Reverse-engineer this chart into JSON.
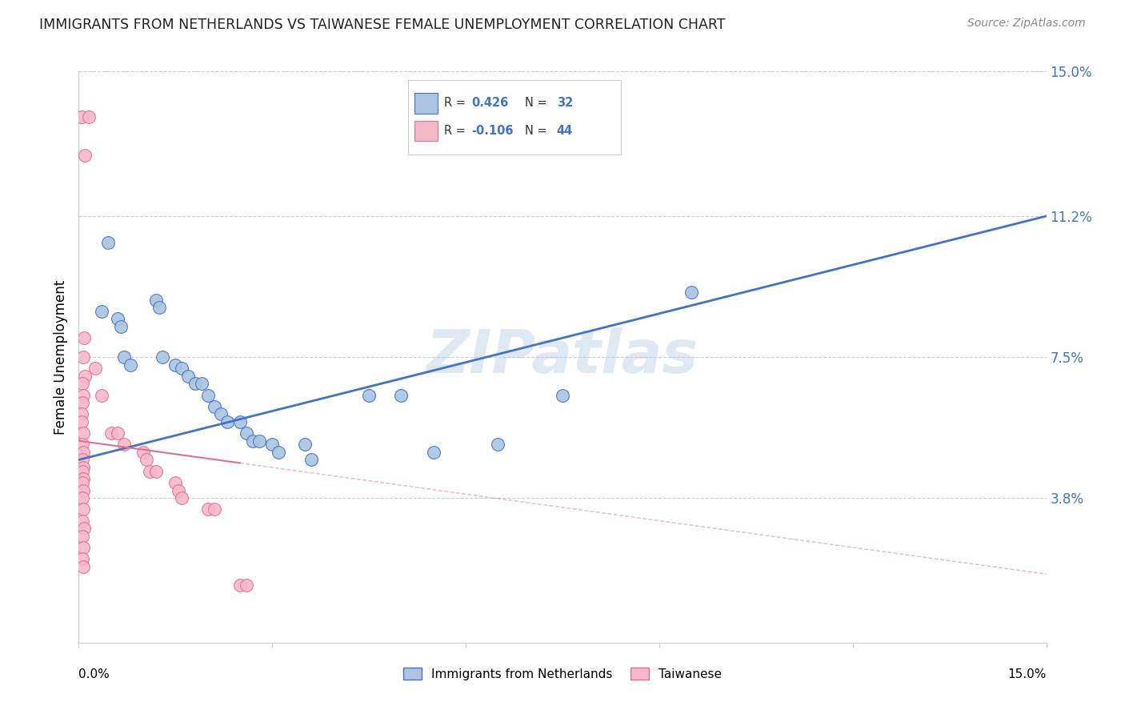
{
  "title": "IMMIGRANTS FROM NETHERLANDS VS TAIWANESE FEMALE UNEMPLOYMENT CORRELATION CHART",
  "source": "Source: ZipAtlas.com",
  "ylabel": "Female Unemployment",
  "xmin": 0.0,
  "xmax": 15.0,
  "ymin": 0.0,
  "ymax": 15.0,
  "yticks": [
    3.8,
    7.5,
    11.2,
    15.0
  ],
  "ytick_labels": [
    "3.8%",
    "7.5%",
    "11.2%",
    "15.0%"
  ],
  "legend1_label": "Immigrants from Netherlands",
  "legend2_label": "Taiwanese",
  "r1": "0.426",
  "n1": "32",
  "r2": "-0.106",
  "n2": "44",
  "color_blue": "#aac4e2",
  "color_pink": "#f5b8c8",
  "line_blue": "#4472c4",
  "line_pink": "#e07090",
  "watermark": "ZIPatlas",
  "blue_line_x": [
    0.0,
    15.0
  ],
  "blue_line_y": [
    4.8,
    11.2
  ],
  "pink_line_x": [
    0.0,
    15.0
  ],
  "pink_line_y": [
    5.3,
    1.8
  ],
  "blue_points": [
    [
      0.35,
      8.7
    ],
    [
      0.45,
      10.5
    ],
    [
      0.6,
      8.5
    ],
    [
      0.65,
      8.3
    ],
    [
      0.7,
      7.5
    ],
    [
      0.8,
      7.3
    ],
    [
      1.2,
      9.0
    ],
    [
      1.25,
      8.8
    ],
    [
      1.3,
      7.5
    ],
    [
      1.5,
      7.3
    ],
    [
      1.6,
      7.2
    ],
    [
      1.7,
      7.0
    ],
    [
      1.8,
      6.8
    ],
    [
      1.9,
      6.8
    ],
    [
      2.0,
      6.5
    ],
    [
      2.1,
      6.2
    ],
    [
      2.2,
      6.0
    ],
    [
      2.3,
      5.8
    ],
    [
      2.5,
      5.8
    ],
    [
      2.6,
      5.5
    ],
    [
      2.7,
      5.3
    ],
    [
      2.8,
      5.3
    ],
    [
      3.0,
      5.2
    ],
    [
      3.1,
      5.0
    ],
    [
      3.5,
      5.2
    ],
    [
      3.6,
      4.8
    ],
    [
      4.5,
      6.5
    ],
    [
      5.0,
      6.5
    ],
    [
      5.5,
      5.0
    ],
    [
      6.5,
      5.2
    ],
    [
      7.5,
      6.5
    ],
    [
      9.5,
      9.2
    ]
  ],
  "pink_points": [
    [
      0.05,
      13.8
    ],
    [
      0.15,
      13.8
    ],
    [
      0.1,
      12.8
    ],
    [
      0.08,
      8.0
    ],
    [
      0.07,
      7.5
    ],
    [
      0.09,
      7.0
    ],
    [
      0.06,
      6.8
    ],
    [
      0.07,
      6.5
    ],
    [
      0.06,
      6.3
    ],
    [
      0.05,
      6.0
    ],
    [
      0.05,
      5.8
    ],
    [
      0.07,
      5.5
    ],
    [
      0.06,
      5.2
    ],
    [
      0.07,
      5.0
    ],
    [
      0.06,
      4.8
    ],
    [
      0.07,
      4.6
    ],
    [
      0.06,
      4.5
    ],
    [
      0.07,
      4.3
    ],
    [
      0.06,
      4.2
    ],
    [
      0.07,
      4.0
    ],
    [
      0.06,
      3.8
    ],
    [
      0.07,
      3.5
    ],
    [
      0.06,
      3.2
    ],
    [
      0.08,
      3.0
    ],
    [
      0.06,
      2.8
    ],
    [
      0.07,
      2.5
    ],
    [
      0.06,
      2.2
    ],
    [
      0.07,
      2.0
    ],
    [
      0.25,
      7.2
    ],
    [
      0.35,
      6.5
    ],
    [
      0.5,
      5.5
    ],
    [
      0.6,
      5.5
    ],
    [
      0.7,
      5.2
    ],
    [
      1.0,
      5.0
    ],
    [
      1.05,
      4.8
    ],
    [
      1.1,
      4.5
    ],
    [
      1.2,
      4.5
    ],
    [
      1.5,
      4.2
    ],
    [
      1.55,
      4.0
    ],
    [
      1.6,
      3.8
    ],
    [
      2.0,
      3.5
    ],
    [
      2.1,
      3.5
    ],
    [
      2.5,
      1.5
    ],
    [
      2.6,
      1.5
    ]
  ]
}
